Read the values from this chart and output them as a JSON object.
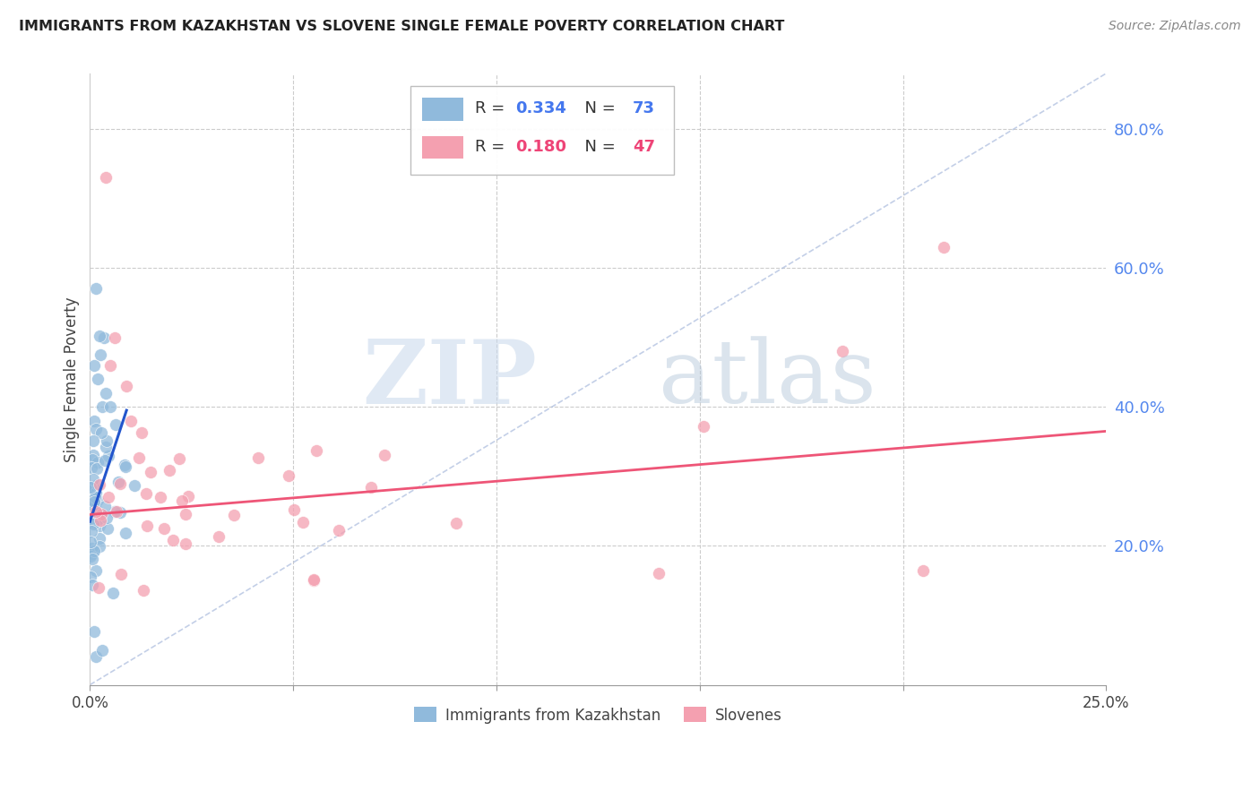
{
  "title": "IMMIGRANTS FROM KAZAKHSTAN VS SLOVENE SINGLE FEMALE POVERTY CORRELATION CHART",
  "source": "Source: ZipAtlas.com",
  "ylabel": "Single Female Poverty",
  "yticks": [
    0.0,
    0.2,
    0.4,
    0.6,
    0.8
  ],
  "xlim": [
    0.0,
    0.25
  ],
  "ylim": [
    0.0,
    0.88
  ],
  "r_blue": 0.334,
  "n_blue": 73,
  "r_pink": 0.18,
  "n_pink": 47,
  "blue_color": "#90BADC",
  "pink_color": "#F4A0B0",
  "blue_line_color": "#2255CC",
  "pink_line_color": "#EE5577",
  "legend_label_blue": "Immigrants from Kazakhstan",
  "legend_label_pink": "Slovenes",
  "watermark_zip": "ZIP",
  "watermark_atlas": "atlas",
  "blue_line_x": [
    0.0,
    0.009
  ],
  "blue_line_y": [
    0.235,
    0.395
  ],
  "pink_line_x": [
    0.0,
    0.25
  ],
  "pink_line_y": [
    0.245,
    0.365
  ],
  "dash_line_x": [
    0.0,
    0.25
  ],
  "dash_line_y": [
    0.0,
    0.88
  ]
}
